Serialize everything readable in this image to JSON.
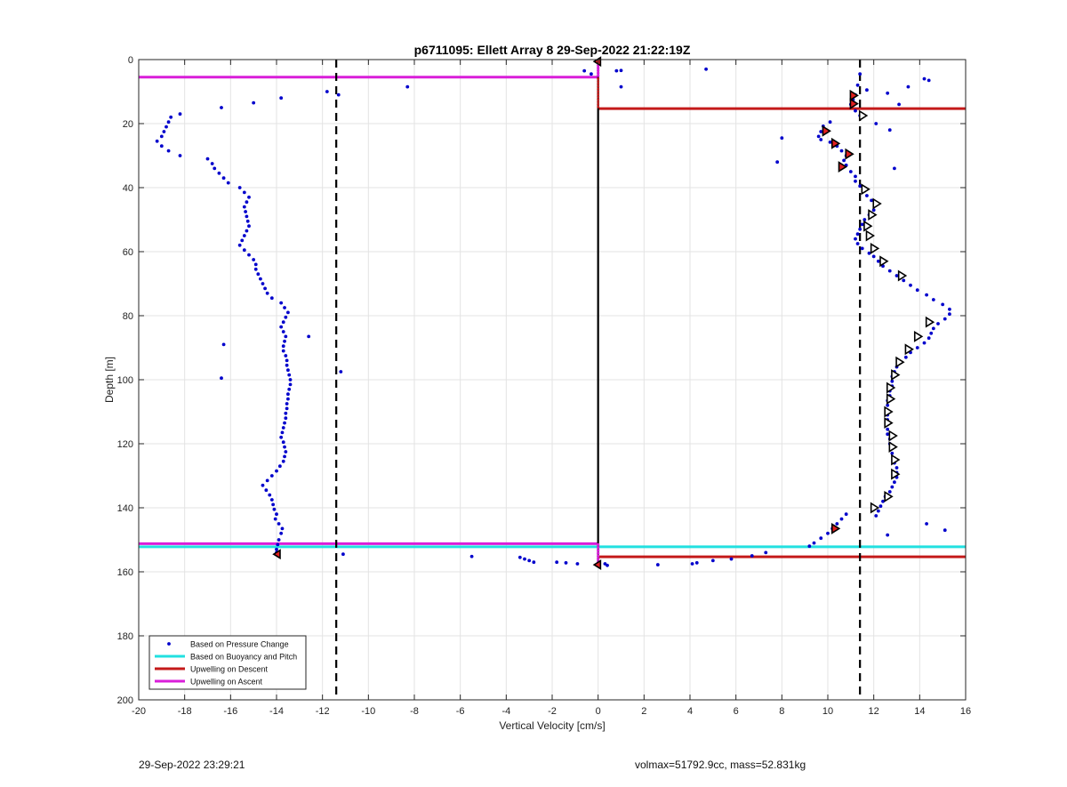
{
  "chart_data": {
    "type": "scatter",
    "title": "p6711095: Ellett Array 8 29-Sep-2022 21:22:19Z",
    "xlabel": "Vertical Velocity [cm/s]",
    "ylabel": "Depth [m]",
    "xlim": [
      -20,
      16
    ],
    "ylim": [
      0,
      200
    ],
    "y_reversed": true,
    "grid": true,
    "x_ticks": [
      "-20",
      "-18",
      "-16",
      "-14",
      "-12",
      "-10",
      "-8",
      "-6",
      "-4",
      "-2",
      "0",
      "2",
      "4",
      "6",
      "8",
      "10",
      "12",
      "14",
      "16"
    ],
    "y_ticks": [
      "0",
      "20",
      "40",
      "60",
      "80",
      "100",
      "120",
      "140",
      "160",
      "180",
      "200"
    ],
    "legend_position": "bottom-left",
    "legend": [
      {
        "label": "Based on Pressure Change",
        "color": "#0000cc",
        "kind": "dot"
      },
      {
        "label": "Based on Buoyancy and Pitch",
        "color": "#22e0e0",
        "kind": "line"
      },
      {
        "label": "Upwelling on Descent",
        "color": "#c41a1a",
        "kind": "line"
      },
      {
        "label": "Upwelling on Ascent",
        "color": "#d91ed9",
        "kind": "line"
      }
    ],
    "colors": {
      "pressure": "#0000cc",
      "buoyancy": "#22e0e0",
      "descent": "#c41a1a",
      "ascent": "#d91ed9",
      "marker_fill": "#e02020"
    },
    "dashed_x_lines": [
      -11.4,
      11.4
    ],
    "zero_line_x": 0,
    "ascent_segments": [
      [
        -20,
        0,
        5.5
      ],
      [
        -20,
        0,
        151.2
      ]
    ],
    "descent_segments": [
      [
        0,
        16,
        15.3
      ],
      [
        0,
        16,
        155.3
      ]
    ],
    "buoyancy_segments": [
      [
        -20,
        16,
        152.2
      ]
    ],
    "pressure_points_ascent": [
      [
        -14.0,
        154.0
      ],
      [
        -14.0,
        153.0
      ],
      [
        -13.95,
        151.5
      ],
      [
        -13.9,
        150.0
      ],
      [
        -13.8,
        148.0
      ],
      [
        -13.75,
        146.5
      ],
      [
        -13.9,
        145.0
      ],
      [
        -14.05,
        143.5
      ],
      [
        -14.0,
        142.0
      ],
      [
        -14.1,
        140.5
      ],
      [
        -14.15,
        139.0
      ],
      [
        -14.2,
        137.5
      ],
      [
        -14.3,
        136.0
      ],
      [
        -14.45,
        134.5
      ],
      [
        -14.6,
        133.0
      ],
      [
        -14.4,
        131.5
      ],
      [
        -14.2,
        130.0
      ],
      [
        -14.0,
        128.5
      ],
      [
        -13.85,
        127.0
      ],
      [
        -13.7,
        125.5
      ],
      [
        -13.65,
        124.0
      ],
      [
        -13.6,
        122.5
      ],
      [
        -13.65,
        121.0
      ],
      [
        -13.7,
        119.5
      ],
      [
        -13.8,
        118.0
      ],
      [
        -13.75,
        116.5
      ],
      [
        -13.7,
        115.0
      ],
      [
        -13.65,
        113.5
      ],
      [
        -13.6,
        112.0
      ],
      [
        -13.6,
        110.5
      ],
      [
        -13.55,
        109.0
      ],
      [
        -13.55,
        107.5
      ],
      [
        -13.5,
        106.0
      ],
      [
        -13.5,
        104.5
      ],
      [
        -13.45,
        103.0
      ],
      [
        -13.4,
        101.5
      ],
      [
        -13.4,
        100.0
      ],
      [
        -13.45,
        98.5
      ],
      [
        -13.5,
        97.0
      ],
      [
        -13.55,
        95.5
      ],
      [
        -13.55,
        94.0
      ],
      [
        -13.6,
        92.5
      ],
      [
        -13.7,
        91.0
      ],
      [
        -13.7,
        89.5
      ],
      [
        -13.65,
        88.0
      ],
      [
        -13.6,
        86.5
      ],
      [
        -13.7,
        85.0
      ],
      [
        -13.8,
        83.5
      ],
      [
        -13.7,
        82.0
      ],
      [
        -13.6,
        80.5
      ],
      [
        -13.5,
        79.0
      ],
      [
        -13.65,
        77.5
      ],
      [
        -13.8,
        76.0
      ],
      [
        -14.2,
        74.5
      ],
      [
        -14.4,
        73.0
      ],
      [
        -14.5,
        71.5
      ],
      [
        -14.6,
        70.0
      ],
      [
        -14.7,
        68.5
      ],
      [
        -14.8,
        67.0
      ],
      [
        -14.9,
        65.5
      ],
      [
        -14.9,
        64.0
      ],
      [
        -15.0,
        62.5
      ],
      [
        -15.2,
        61.0
      ],
      [
        -15.4,
        59.5
      ],
      [
        -15.6,
        58.0
      ],
      [
        -15.5,
        56.5
      ],
      [
        -15.4,
        55.0
      ],
      [
        -15.3,
        53.5
      ],
      [
        -15.2,
        52.0
      ],
      [
        -15.25,
        50.5
      ],
      [
        -15.3,
        49.0
      ],
      [
        -15.35,
        47.5
      ],
      [
        -15.4,
        46.0
      ],
      [
        -15.3,
        44.5
      ],
      [
        -15.2,
        43.0
      ],
      [
        -15.4,
        41.5
      ],
      [
        -15.6,
        40.0
      ],
      [
        -16.1,
        38.5
      ],
      [
        -16.3,
        37.0
      ],
      [
        -16.5,
        35.5
      ],
      [
        -16.7,
        34.0
      ],
      [
        -16.8,
        32.5
      ],
      [
        -17.0,
        31.0
      ],
      [
        -18.2,
        30.0
      ],
      [
        -18.7,
        28.5
      ],
      [
        -19.0,
        27.0
      ],
      [
        -19.2,
        25.5
      ],
      [
        -19.0,
        24.0
      ],
      [
        -18.9,
        22.5
      ],
      [
        -18.8,
        21.0
      ],
      [
        -18.7,
        19.5
      ],
      [
        -18.6,
        18.0
      ],
      [
        -18.2,
        17.0
      ],
      [
        -16.4,
        15.0
      ],
      [
        -15.0,
        13.5
      ],
      [
        -13.8,
        12.0
      ],
      [
        -11.3,
        11.0
      ],
      [
        -11.8,
        10.0
      ],
      [
        -8.3,
        8.5
      ],
      [
        -0.6,
        3.5
      ],
      [
        -0.3,
        4.5
      ],
      [
        -12.6,
        86.5
      ],
      [
        -16.3,
        89.0
      ],
      [
        -16.4,
        99.5
      ],
      [
        -11.2,
        97.5
      ],
      [
        -11.1,
        154.5
      ],
      [
        -5.5,
        155.2
      ],
      [
        -3.4,
        155.5
      ],
      [
        -3.2,
        156.0
      ],
      [
        -3.0,
        156.5
      ],
      [
        -2.8,
        157.0
      ],
      [
        -1.8,
        157.0
      ],
      [
        -1.4,
        157.2
      ],
      [
        -0.9,
        157.5
      ]
    ],
    "pressure_points_descent": [
      [
        0.8,
        3.5
      ],
      [
        1.0,
        3.4
      ],
      [
        1.0,
        8.5
      ],
      [
        4.7,
        3.0
      ],
      [
        11.4,
        4.5
      ],
      [
        11.3,
        8.0
      ],
      [
        11.7,
        9.5
      ],
      [
        11.2,
        11.0
      ],
      [
        11.1,
        12.5
      ],
      [
        11.0,
        14.0
      ],
      [
        11.2,
        16.0
      ],
      [
        11.4,
        17.5
      ],
      [
        14.2,
        6.0
      ],
      [
        14.4,
        6.5
      ],
      [
        13.5,
        8.5
      ],
      [
        12.6,
        10.5
      ],
      [
        13.1,
        14.0
      ],
      [
        12.1,
        20.0
      ],
      [
        12.7,
        22.0
      ],
      [
        10.1,
        19.5
      ],
      [
        9.8,
        20.8
      ],
      [
        9.7,
        22.5
      ],
      [
        9.6,
        24.0
      ],
      [
        9.7,
        25.0
      ],
      [
        10.1,
        25.8
      ],
      [
        10.4,
        27.0
      ],
      [
        10.6,
        28.5
      ],
      [
        10.8,
        30.0
      ],
      [
        10.7,
        31.5
      ],
      [
        10.8,
        33.0
      ],
      [
        11.0,
        35.0
      ],
      [
        11.2,
        36.5
      ],
      [
        11.2,
        38.0
      ],
      [
        11.4,
        39.5
      ],
      [
        11.6,
        41.0
      ],
      [
        11.7,
        42.5
      ],
      [
        11.9,
        44.0
      ],
      [
        12.1,
        45.5
      ],
      [
        12.0,
        47.0
      ],
      [
        11.8,
        48.5
      ],
      [
        11.6,
        50.0
      ],
      [
        11.5,
        51.5
      ],
      [
        11.4,
        53.0
      ],
      [
        11.3,
        54.5
      ],
      [
        11.2,
        56.0
      ],
      [
        11.3,
        57.5
      ],
      [
        11.5,
        59.0
      ],
      [
        11.8,
        60.5
      ],
      [
        12.0,
        61.5
      ],
      [
        12.2,
        63.0
      ],
      [
        12.4,
        64.5
      ],
      [
        12.7,
        66.0
      ],
      [
        13.0,
        67.5
      ],
      [
        13.3,
        69.0
      ],
      [
        13.6,
        70.5
      ],
      [
        13.9,
        72.0
      ],
      [
        14.3,
        73.5
      ],
      [
        14.6,
        75.0
      ],
      [
        15.0,
        76.5
      ],
      [
        15.3,
        78.0
      ],
      [
        15.3,
        79.5
      ],
      [
        15.1,
        81.0
      ],
      [
        14.8,
        82.5
      ],
      [
        14.6,
        84.0
      ],
      [
        14.5,
        85.5
      ],
      [
        14.4,
        87.0
      ],
      [
        14.2,
        88.5
      ],
      [
        13.9,
        90.0
      ],
      [
        13.6,
        91.5
      ],
      [
        13.4,
        93.0
      ],
      [
        13.2,
        94.5
      ],
      [
        13.0,
        96.0
      ],
      [
        12.9,
        97.5
      ],
      [
        12.8,
        99.0
      ],
      [
        12.8,
        100.5
      ],
      [
        12.8,
        102.0
      ],
      [
        12.7,
        103.5
      ],
      [
        12.7,
        105.0
      ],
      [
        12.6,
        106.5
      ],
      [
        12.6,
        108.0
      ],
      [
        12.6,
        109.5
      ],
      [
        12.6,
        111.0
      ],
      [
        12.6,
        112.5
      ],
      [
        12.6,
        114.0
      ],
      [
        12.6,
        115.5
      ],
      [
        12.6,
        117.0
      ],
      [
        12.7,
        118.5
      ],
      [
        12.7,
        120.0
      ],
      [
        12.8,
        121.5
      ],
      [
        12.8,
        123.0
      ],
      [
        12.9,
        124.5
      ],
      [
        12.9,
        126.0
      ],
      [
        13.0,
        127.5
      ],
      [
        13.0,
        129.0
      ],
      [
        13.0,
        130.5
      ],
      [
        12.9,
        132.0
      ],
      [
        12.8,
        133.5
      ],
      [
        12.7,
        135.0
      ],
      [
        12.5,
        136.5
      ],
      [
        12.4,
        138.0
      ],
      [
        12.3,
        139.5
      ],
      [
        12.2,
        141.0
      ],
      [
        12.1,
        142.5
      ],
      [
        12.9,
        34.0
      ],
      [
        8.0,
        24.5
      ],
      [
        7.8,
        32.0
      ],
      [
        10.8,
        142.0
      ],
      [
        10.6,
        143.5
      ],
      [
        10.4,
        145.0
      ],
      [
        10.2,
        146.5
      ],
      [
        10.0,
        148.0
      ],
      [
        9.7,
        149.5
      ],
      [
        9.4,
        151.0
      ],
      [
        9.2,
        152.0
      ],
      [
        14.3,
        145.0
      ],
      [
        15.1,
        147.0
      ],
      [
        12.6,
        148.5
      ],
      [
        7.3,
        154.0
      ],
      [
        6.7,
        155.0
      ],
      [
        5.8,
        156.0
      ],
      [
        5.0,
        156.5
      ],
      [
        4.3,
        157.2
      ],
      [
        4.1,
        157.5
      ],
      [
        2.6,
        157.8
      ],
      [
        0.4,
        158.0
      ],
      [
        0.3,
        157.5
      ]
    ],
    "ascent_markers": [
      [
        -13.95,
        154.5
      ],
      [
        0.0,
        157.8
      ],
      [
        0.0,
        0.6
      ]
    ],
    "descent_markers_red": [
      [
        11.1,
        11.2
      ],
      [
        11.1,
        13.8
      ],
      [
        9.9,
        22.3
      ],
      [
        10.3,
        26.2
      ],
      [
        10.9,
        29.5
      ],
      [
        10.6,
        33.5
      ],
      [
        10.3,
        146.5
      ]
    ],
    "descent_markers_open": [
      [
        11.5,
        17.5
      ],
      [
        11.6,
        40.5
      ],
      [
        12.1,
        45.0
      ],
      [
        11.9,
        48.5
      ],
      [
        11.7,
        52.0
      ],
      [
        11.8,
        55.0
      ],
      [
        12.0,
        59.0
      ],
      [
        12.4,
        63.0
      ],
      [
        13.2,
        67.5
      ],
      [
        14.4,
        82.0
      ],
      [
        13.9,
        86.5
      ],
      [
        13.5,
        90.5
      ],
      [
        13.1,
        94.5
      ],
      [
        12.9,
        98.5
      ],
      [
        12.7,
        102.5
      ],
      [
        12.7,
        106.0
      ],
      [
        12.6,
        110.0
      ],
      [
        12.6,
        113.5
      ],
      [
        12.8,
        117.5
      ],
      [
        12.8,
        121.0
      ],
      [
        12.9,
        125.0
      ],
      [
        12.9,
        129.5
      ],
      [
        12.6,
        136.5
      ],
      [
        12.0,
        140.0
      ]
    ]
  },
  "footer": {
    "timestamp": "29-Sep-2022 23:29:21",
    "stats": "volmax=51792.9cc, mass=52.831kg"
  }
}
